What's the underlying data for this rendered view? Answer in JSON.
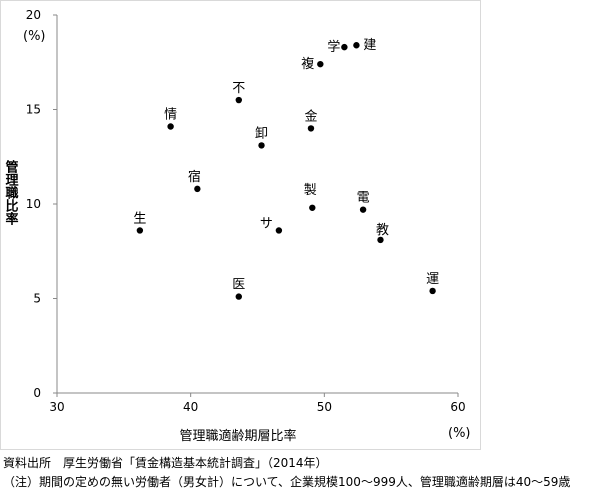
{
  "chart_data": {
    "type": "scatter",
    "y_label": "管理職比率",
    "y_unit": "(%)",
    "x_label": "管理職適齢期層比率",
    "x_unit": "(%)",
    "xlim": [
      30,
      60
    ],
    "xticks": [
      30,
      40,
      50,
      60
    ],
    "ylim": [
      0,
      20
    ],
    "yticks": [
      0,
      5,
      10,
      15,
      20
    ],
    "color": "#000000",
    "labels": [
      "生",
      "情",
      "宿",
      "不",
      "医",
      "卸",
      "サ",
      "複",
      "金",
      "製",
      "学",
      "建",
      "電",
      "教",
      "運"
    ],
    "x": [
      36.2,
      38.5,
      40.5,
      43.6,
      43.6,
      45.3,
      46.6,
      49.7,
      49.0,
      49.1,
      51.5,
      52.4,
      52.9,
      54.2,
      58.1
    ],
    "values": [
      8.6,
      14.1,
      10.8,
      15.5,
      5.1,
      13.1,
      8.6,
      17.4,
      14.0,
      9.8,
      18.3,
      18.4,
      9.7,
      8.1,
      5.4
    ],
    "notes": [
      "資料出所　厚生労働省「賃金構造基本統計調査」（2014年）",
      "（注）期間の定めの無い労働者（男女計）について、企業規模100～999人、管理職適齢期層は40～59歳"
    ]
  }
}
